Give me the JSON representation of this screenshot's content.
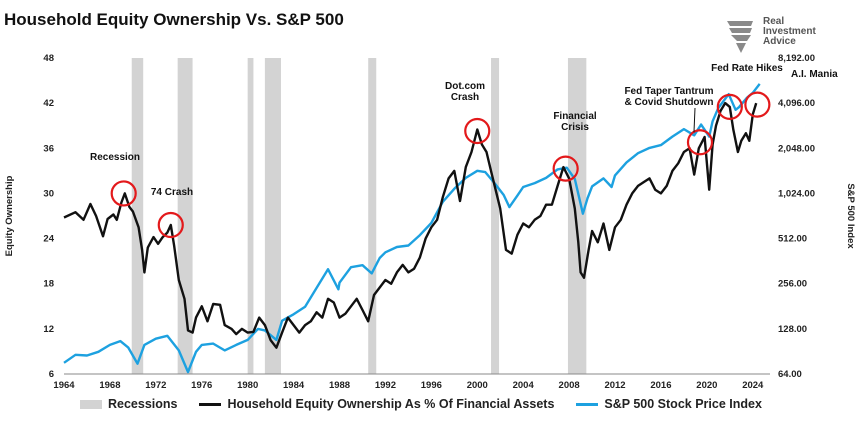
{
  "title": "Household Equity Ownership Vs. S&P 500",
  "logo": {
    "line1": "Real",
    "line2": "Investment",
    "line3": "Advice"
  },
  "colors": {
    "equity": "#111111",
    "sp500": "#1da1e0",
    "recession": "#d3d3d3",
    "circle": "#e3191b"
  },
  "chart_data": {
    "type": "line",
    "x_ticks": [
      1964,
      1968,
      1972,
      1976,
      1980,
      1984,
      1988,
      1992,
      1996,
      2000,
      2004,
      2008,
      2012,
      2016,
      2020,
      2024
    ],
    "xlim": [
      1964,
      2025.5
    ],
    "left_axis": {
      "label": "Equity Ownership",
      "ticks": [
        6,
        12,
        18,
        24,
        30,
        36,
        42,
        48
      ],
      "ylim": [
        6,
        48
      ]
    },
    "right_axis": {
      "label": "S&P 500 Index",
      "scale": "log2",
      "ticks": [
        "64.00",
        "128.00",
        "256.00",
        "512.00",
        "1,024.00",
        "2,048.00",
        "4,096.00",
        "8,192.00"
      ],
      "tick_values": [
        64,
        128,
        256,
        512,
        1024,
        2048,
        4096,
        8192
      ],
      "ylim": [
        64,
        8192
      ]
    },
    "recessions": [
      [
        1969.9,
        1970.9
      ],
      [
        1973.9,
        1975.2
      ],
      [
        1980.0,
        1980.5
      ],
      [
        1981.5,
        1982.9
      ],
      [
        1990.5,
        1991.2
      ],
      [
        2001.2,
        2001.9
      ],
      [
        2007.9,
        2009.5
      ]
    ],
    "legend": [
      "Recessions",
      "Household Equity Ownership As % Of Financial Assets",
      "S&P 500 Stock Price Index"
    ],
    "series": [
      {
        "name": "Household Equity Ownership As % Of Financial Assets",
        "axis": "left",
        "points": [
          [
            1964,
            26.8
          ],
          [
            1965,
            27.5
          ],
          [
            1965.7,
            26.5
          ],
          [
            1966.3,
            28.6
          ],
          [
            1966.8,
            27.0
          ],
          [
            1967.4,
            24.3
          ],
          [
            1967.8,
            26.6
          ],
          [
            1968.3,
            27.2
          ],
          [
            1968.6,
            26.5
          ],
          [
            1969.0,
            28.8
          ],
          [
            1969.3,
            30.0
          ],
          [
            1969.7,
            28.2
          ],
          [
            1970.0,
            27.6
          ],
          [
            1970.5,
            25.5
          ],
          [
            1970.8,
            22.5
          ],
          [
            1971.0,
            19.5
          ],
          [
            1971.3,
            22.8
          ],
          [
            1971.8,
            24.2
          ],
          [
            1972.2,
            23.3
          ],
          [
            1972.6,
            24.2
          ],
          [
            1973.0,
            24.8
          ],
          [
            1973.3,
            25.8
          ],
          [
            1973.6,
            23.0
          ],
          [
            1974.0,
            18.5
          ],
          [
            1974.5,
            16.0
          ],
          [
            1974.8,
            11.8
          ],
          [
            1975.2,
            11.5
          ],
          [
            1975.5,
            13.5
          ],
          [
            1976.0,
            15.0
          ],
          [
            1976.5,
            13.0
          ],
          [
            1977.0,
            15.3
          ],
          [
            1977.6,
            15.2
          ],
          [
            1978.0,
            12.5
          ],
          [
            1978.6,
            12.0
          ],
          [
            1979.0,
            11.3
          ],
          [
            1979.5,
            12.0
          ],
          [
            1980.0,
            11.5
          ],
          [
            1980.5,
            11.6
          ],
          [
            1981.0,
            13.5
          ],
          [
            1981.5,
            12.5
          ],
          [
            1982.0,
            10.5
          ],
          [
            1982.5,
            9.5
          ],
          [
            1983.0,
            11.5
          ],
          [
            1983.5,
            13.5
          ],
          [
            1984.0,
            12.5
          ],
          [
            1984.5,
            11.5
          ],
          [
            1985.0,
            12.5
          ],
          [
            1985.5,
            13.0
          ],
          [
            1986.0,
            14.2
          ],
          [
            1986.5,
            13.5
          ],
          [
            1987.0,
            16.0
          ],
          [
            1987.5,
            15.5
          ],
          [
            1988.0,
            13.5
          ],
          [
            1988.5,
            14.0
          ],
          [
            1989.0,
            15.0
          ],
          [
            1989.5,
            16.0
          ],
          [
            1990.0,
            14.5
          ],
          [
            1990.5,
            13.0
          ],
          [
            1991.0,
            16.5
          ],
          [
            1991.5,
            17.5
          ],
          [
            1992.0,
            18.5
          ],
          [
            1992.5,
            18.0
          ],
          [
            1993.0,
            19.5
          ],
          [
            1993.5,
            20.5
          ],
          [
            1994.0,
            19.5
          ],
          [
            1994.5,
            20.0
          ],
          [
            1995.0,
            21.5
          ],
          [
            1995.5,
            24.0
          ],
          [
            1996.0,
            25.5
          ],
          [
            1996.5,
            26.5
          ],
          [
            1997.0,
            29.5
          ],
          [
            1997.5,
            32.0
          ],
          [
            1998.0,
            33.0
          ],
          [
            1998.5,
            29.0
          ],
          [
            1999.0,
            33.5
          ],
          [
            1999.5,
            35.5
          ],
          [
            2000.0,
            38.5
          ],
          [
            2000.4,
            36.5
          ],
          [
            2000.8,
            35.5
          ],
          [
            2001.2,
            33.0
          ],
          [
            2001.6,
            30.5
          ],
          [
            2002.0,
            28.0
          ],
          [
            2002.5,
            22.5
          ],
          [
            2003.0,
            22.0
          ],
          [
            2003.5,
            24.5
          ],
          [
            2004.0,
            26.0
          ],
          [
            2004.5,
            25.5
          ],
          [
            2005.0,
            26.5
          ],
          [
            2005.5,
            27.0
          ],
          [
            2006.0,
            28.5
          ],
          [
            2006.5,
            28.5
          ],
          [
            2007.0,
            31.0
          ],
          [
            2007.5,
            33.5
          ],
          [
            2008.0,
            32.0
          ],
          [
            2008.5,
            28.0
          ],
          [
            2008.8,
            23.5
          ],
          [
            2009.0,
            19.5
          ],
          [
            2009.3,
            18.8
          ],
          [
            2009.7,
            22.5
          ],
          [
            2010.0,
            25.0
          ],
          [
            2010.5,
            23.5
          ],
          [
            2011.0,
            26.0
          ],
          [
            2011.5,
            22.5
          ],
          [
            2012.0,
            25.5
          ],
          [
            2012.5,
            26.5
          ],
          [
            2013.0,
            28.5
          ],
          [
            2013.5,
            30.0
          ],
          [
            2014.0,
            31.0
          ],
          [
            2014.5,
            31.5
          ],
          [
            2015.0,
            32.0
          ],
          [
            2015.5,
            30.5
          ],
          [
            2016.0,
            30.0
          ],
          [
            2016.5,
            31.0
          ],
          [
            2017.0,
            33.0
          ],
          [
            2017.5,
            34.0
          ],
          [
            2018.0,
            35.5
          ],
          [
            2018.5,
            36.0
          ],
          [
            2018.9,
            32.5
          ],
          [
            2019.3,
            36.0
          ],
          [
            2019.8,
            37.5
          ],
          [
            2020.2,
            30.5
          ],
          [
            2020.5,
            36.5
          ],
          [
            2020.8,
            39.0
          ],
          [
            2021.2,
            41.0
          ],
          [
            2021.6,
            42.0
          ],
          [
            2022.0,
            41.5
          ],
          [
            2022.3,
            38.5
          ],
          [
            2022.7,
            35.5
          ],
          [
            2023.0,
            37.0
          ],
          [
            2023.4,
            38.0
          ],
          [
            2023.7,
            37.0
          ],
          [
            2024.0,
            40.5
          ],
          [
            2024.3,
            42.0
          ]
        ]
      },
      {
        "name": "S&P 500 Stock Price Index",
        "axis": "right",
        "points": [
          [
            1964,
            76
          ],
          [
            1965,
            86
          ],
          [
            1966,
            85
          ],
          [
            1967,
            90
          ],
          [
            1968,
            100
          ],
          [
            1968.9,
            106
          ],
          [
            1969.6,
            96
          ],
          [
            1970.4,
            75
          ],
          [
            1971,
            100
          ],
          [
            1972,
            110
          ],
          [
            1973,
            115
          ],
          [
            1974,
            92
          ],
          [
            1974.8,
            66
          ],
          [
            1975.5,
            90
          ],
          [
            1976,
            100
          ],
          [
            1977,
            102
          ],
          [
            1978,
            92
          ],
          [
            1979,
            100
          ],
          [
            1980,
            108
          ],
          [
            1980.9,
            128
          ],
          [
            1981.5,
            125
          ],
          [
            1982.5,
            108
          ],
          [
            1983,
            145
          ],
          [
            1984,
            160
          ],
          [
            1985,
            180
          ],
          [
            1986,
            240
          ],
          [
            1987,
            320
          ],
          [
            1987.9,
            235
          ],
          [
            1988,
            260
          ],
          [
            1989,
            330
          ],
          [
            1990,
            340
          ],
          [
            1990.8,
            300
          ],
          [
            1991.5,
            380
          ],
          [
            1992,
            415
          ],
          [
            1993,
            450
          ],
          [
            1994,
            460
          ],
          [
            1995,
            540
          ],
          [
            1996,
            650
          ],
          [
            1997,
            900
          ],
          [
            1998,
            1100
          ],
          [
            1999,
            1300
          ],
          [
            2000,
            1450
          ],
          [
            2000.7,
            1420
          ],
          [
            2001.5,
            1200
          ],
          [
            2002.3,
            1000
          ],
          [
            2002.8,
            830
          ],
          [
            2003.5,
            990
          ],
          [
            2004,
            1130
          ],
          [
            2005,
            1200
          ],
          [
            2006,
            1300
          ],
          [
            2007,
            1480
          ],
          [
            2007.8,
            1520
          ],
          [
            2008.5,
            1280
          ],
          [
            2009.2,
            750
          ],
          [
            2009.6,
            950
          ],
          [
            2010,
            1140
          ],
          [
            2011,
            1290
          ],
          [
            2011.7,
            1130
          ],
          [
            2012,
            1350
          ],
          [
            2013,
            1650
          ],
          [
            2014,
            1900
          ],
          [
            2015,
            2060
          ],
          [
            2016,
            2150
          ],
          [
            2017,
            2450
          ],
          [
            2018,
            2750
          ],
          [
            2018.9,
            2500
          ],
          [
            2019.5,
            2950
          ],
          [
            2020.2,
            2450
          ],
          [
            2020.5,
            3100
          ],
          [
            2021,
            3800
          ],
          [
            2021.9,
            4700
          ],
          [
            2022.5,
            3700
          ],
          [
            2022.8,
            3850
          ],
          [
            2023.5,
            4450
          ],
          [
            2024,
            4800
          ],
          [
            2024.6,
            5500
          ]
        ]
      }
    ],
    "annotations": [
      {
        "text": "Recession",
        "x": 1969.2,
        "y": 30.0
      },
      {
        "text": "74 Crash",
        "x": 1973.3,
        "y": 25.8
      },
      {
        "text": "Dot.com Crash",
        "x": 2000.0,
        "y": 38.3
      },
      {
        "text": "Financial Crisis",
        "x": 2007.7,
        "y": 33.3
      },
      {
        "text": "Fed Taper Tantrum & Covid Shutdown",
        "x": 2019.4,
        "y": 36.8
      },
      {
        "text": "Fed Rate Hikes",
        "x": 2022.0,
        "y": 41.5
      },
      {
        "text": "A.I. Mania",
        "x": 2024.4,
        "y": 41.8
      }
    ]
  }
}
